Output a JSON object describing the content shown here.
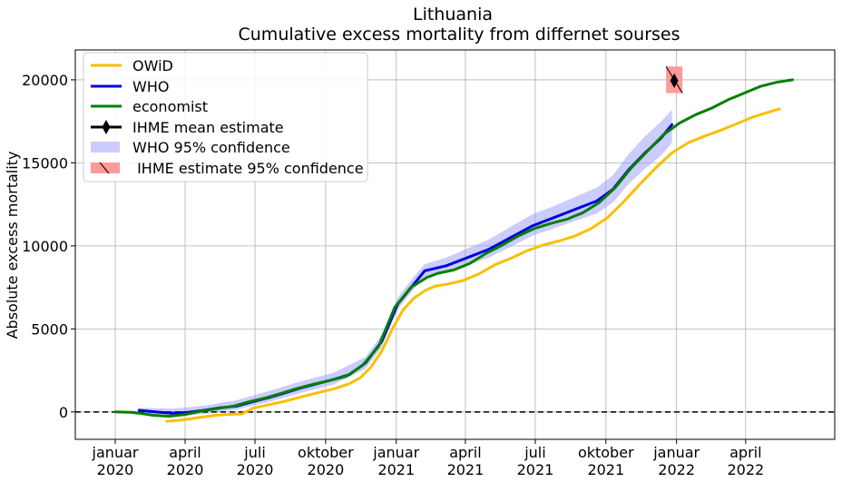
{
  "chart_data": {
    "type": "line",
    "title": "Lithuania",
    "subtitle": "Cumulative excess mortality from differnet sourses",
    "xlabel": "",
    "ylabel": "Absolute excess mortality",
    "xlim": [
      "2019-11-10",
      "2022-07-26"
    ],
    "ylim": [
      -1650,
      21800
    ],
    "grid": true,
    "legend_position": "top-left",
    "zero_line": {
      "y": 0,
      "style": "dashed",
      "color": "#000000"
    },
    "x_ticks": [
      {
        "date": "2020-01-01",
        "line1": "januar",
        "line2": "2020"
      },
      {
        "date": "2020-04-01",
        "line1": "april",
        "line2": "2020"
      },
      {
        "date": "2020-07-01",
        "line1": "juli",
        "line2": "2020"
      },
      {
        "date": "2020-10-01",
        "line1": "oktober",
        "line2": "2020"
      },
      {
        "date": "2021-01-01",
        "line1": "januar",
        "line2": "2021"
      },
      {
        "date": "2021-04-01",
        "line1": "april",
        "line2": "2021"
      },
      {
        "date": "2021-07-01",
        "line1": "juli",
        "line2": "2021"
      },
      {
        "date": "2021-10-01",
        "line1": "oktober",
        "line2": "2021"
      },
      {
        "date": "2022-01-01",
        "line1": "januar",
        "line2": "2022"
      },
      {
        "date": "2022-04-01",
        "line1": "april",
        "line2": "2022"
      }
    ],
    "y_ticks": [
      {
        "value": 0,
        "label": "0"
      },
      {
        "value": 5000,
        "label": "5000"
      },
      {
        "value": 10000,
        "label": "10000"
      },
      {
        "value": 15000,
        "label": "15000"
      },
      {
        "value": 20000,
        "label": "20000"
      }
    ],
    "series": [
      {
        "name": "OWiD",
        "color": "#f8bf00",
        "points": [
          [
            "2020-03-08",
            -560
          ],
          [
            "2020-03-29",
            -480
          ],
          [
            "2020-04-19",
            -340
          ],
          [
            "2020-05-10",
            -200
          ],
          [
            "2020-05-31",
            -140
          ],
          [
            "2020-06-14",
            -120
          ],
          [
            "2020-06-28",
            220
          ],
          [
            "2020-07-19",
            440
          ],
          [
            "2020-08-09",
            640
          ],
          [
            "2020-08-30",
            900
          ],
          [
            "2020-09-20",
            1150
          ],
          [
            "2020-10-11",
            1380
          ],
          [
            "2020-11-01",
            1700
          ],
          [
            "2020-11-15",
            2050
          ],
          [
            "2020-11-29",
            2700
          ],
          [
            "2020-12-13",
            3650
          ],
          [
            "2020-12-27",
            5000
          ],
          [
            "2021-01-10",
            6150
          ],
          [
            "2021-01-24",
            6850
          ],
          [
            "2021-02-07",
            7300
          ],
          [
            "2021-02-21",
            7580
          ],
          [
            "2021-03-07",
            7680
          ],
          [
            "2021-03-28",
            7900
          ],
          [
            "2021-04-18",
            8300
          ],
          [
            "2021-05-09",
            8850
          ],
          [
            "2021-05-30",
            9250
          ],
          [
            "2021-06-20",
            9700
          ],
          [
            "2021-07-11",
            10050
          ],
          [
            "2021-08-01",
            10300
          ],
          [
            "2021-08-22",
            10600
          ],
          [
            "2021-09-12",
            11050
          ],
          [
            "2021-10-03",
            11700
          ],
          [
            "2021-10-24",
            12650
          ],
          [
            "2021-11-14",
            13700
          ],
          [
            "2021-12-05",
            14700
          ],
          [
            "2021-12-26",
            15600
          ],
          [
            "2022-01-16",
            16200
          ],
          [
            "2022-02-06",
            16600
          ],
          [
            "2022-02-27",
            16950
          ],
          [
            "2022-03-20",
            17350
          ],
          [
            "2022-04-10",
            17750
          ],
          [
            "2022-05-01",
            18050
          ],
          [
            "2022-05-15",
            18250
          ]
        ]
      },
      {
        "name": "WHO",
        "color": "#0000dd",
        "points": [
          [
            "2020-02-01",
            100
          ],
          [
            "2020-02-22",
            0
          ],
          [
            "2020-03-15",
            -80
          ],
          [
            "2020-04-05",
            -20
          ],
          [
            "2020-04-26",
            100
          ],
          [
            "2020-05-17",
            250
          ],
          [
            "2020-06-07",
            350
          ],
          [
            "2020-06-28",
            620
          ],
          [
            "2020-07-19",
            860
          ],
          [
            "2020-08-09",
            1150
          ],
          [
            "2020-08-30",
            1450
          ],
          [
            "2020-09-20",
            1700
          ],
          [
            "2020-10-11",
            1950
          ],
          [
            "2020-11-01",
            2250
          ],
          [
            "2020-11-22",
            2950
          ],
          [
            "2020-12-13",
            4250
          ],
          [
            "2021-01-03",
            6500
          ],
          [
            "2021-01-24",
            7700
          ],
          [
            "2021-02-07",
            8500
          ],
          [
            "2021-03-07",
            8800
          ],
          [
            "2021-04-04",
            9300
          ],
          [
            "2021-05-02",
            9800
          ],
          [
            "2021-05-30",
            10500
          ],
          [
            "2021-06-27",
            11200
          ],
          [
            "2021-07-25",
            11700
          ],
          [
            "2021-08-22",
            12200
          ],
          [
            "2021-09-19",
            12700
          ],
          [
            "2021-10-10",
            13400
          ],
          [
            "2021-10-31",
            14600
          ],
          [
            "2021-11-21",
            15600
          ],
          [
            "2021-12-12",
            16500
          ],
          [
            "2021-12-26",
            17300
          ]
        ]
      },
      {
        "name": "economist",
        "color": "#008000",
        "points": [
          [
            "2020-01-01",
            0
          ],
          [
            "2020-01-22",
            -20
          ],
          [
            "2020-02-05",
            -100
          ],
          [
            "2020-02-19",
            -200
          ],
          [
            "2020-03-11",
            -260
          ],
          [
            "2020-04-01",
            -150
          ],
          [
            "2020-04-22",
            50
          ],
          [
            "2020-05-13",
            200
          ],
          [
            "2020-06-03",
            350
          ],
          [
            "2020-06-24",
            620
          ],
          [
            "2020-07-15",
            850
          ],
          [
            "2020-08-05",
            1130
          ],
          [
            "2020-08-26",
            1430
          ],
          [
            "2020-09-16",
            1680
          ],
          [
            "2020-10-07",
            1900
          ],
          [
            "2020-10-28",
            2150
          ],
          [
            "2020-11-18",
            2800
          ],
          [
            "2020-12-09",
            3950
          ],
          [
            "2020-12-30",
            6300
          ],
          [
            "2021-01-20",
            7500
          ],
          [
            "2021-02-10",
            8100
          ],
          [
            "2021-02-24",
            8350
          ],
          [
            "2021-03-17",
            8550
          ],
          [
            "2021-04-07",
            8950
          ],
          [
            "2021-04-28",
            9550
          ],
          [
            "2021-05-19",
            10050
          ],
          [
            "2021-06-09",
            10600
          ],
          [
            "2021-06-30",
            11050
          ],
          [
            "2021-07-21",
            11350
          ],
          [
            "2021-08-11",
            11600
          ],
          [
            "2021-09-01",
            12000
          ],
          [
            "2021-09-22",
            12600
          ],
          [
            "2021-10-13",
            13500
          ],
          [
            "2021-11-03",
            14700
          ],
          [
            "2021-11-24",
            15700
          ],
          [
            "2021-12-15",
            16700
          ],
          [
            "2022-01-05",
            17400
          ],
          [
            "2022-01-26",
            17900
          ],
          [
            "2022-02-16",
            18300
          ],
          [
            "2022-03-09",
            18800
          ],
          [
            "2022-03-30",
            19200
          ],
          [
            "2022-04-20",
            19600
          ],
          [
            "2022-05-11",
            19850
          ],
          [
            "2022-06-01",
            20000
          ]
        ]
      }
    ],
    "confidence_band": {
      "name": "WHO 95% confidence",
      "color": "#9999ff",
      "points": [
        [
          "2020-02-01",
          -50,
          250
        ],
        [
          "2020-03-15",
          -300,
          200
        ],
        [
          "2020-04-26",
          -120,
          380
        ],
        [
          "2020-06-07",
          150,
          700
        ],
        [
          "2020-07-19",
          600,
          1250
        ],
        [
          "2020-08-30",
          1150,
          1850
        ],
        [
          "2020-10-11",
          1650,
          2350
        ],
        [
          "2020-11-22",
          2600,
          3300
        ],
        [
          "2020-12-13",
          3900,
          4650
        ],
        [
          "2021-01-03",
          6200,
          6900
        ],
        [
          "2021-01-24",
          7400,
          8150
        ],
        [
          "2021-02-07",
          8100,
          8900
        ],
        [
          "2021-03-07",
          8400,
          9300
        ],
        [
          "2021-04-04",
          8850,
          9850
        ],
        [
          "2021-05-02",
          9300,
          10400
        ],
        [
          "2021-05-30",
          9950,
          11150
        ],
        [
          "2021-06-27",
          10600,
          11900
        ],
        [
          "2021-07-25",
          11050,
          12400
        ],
        [
          "2021-08-22",
          11500,
          12950
        ],
        [
          "2021-09-19",
          11950,
          13500
        ],
        [
          "2021-10-10",
          12600,
          14250
        ],
        [
          "2021-10-31",
          13750,
          15550
        ],
        [
          "2021-11-21",
          14650,
          16600
        ],
        [
          "2021-12-12",
          15450,
          17500
        ],
        [
          "2021-12-26",
          16200,
          18200
        ]
      ]
    },
    "ihme": {
      "mean_name": "IHME mean estimate",
      "ci_name": " IHME estimate 95% confidence",
      "date": "2021-12-29",
      "mean": 19950,
      "lower": 19200,
      "upper": 20800,
      "ci_color": "#ff9a9a",
      "mean_color": "#000000"
    }
  }
}
